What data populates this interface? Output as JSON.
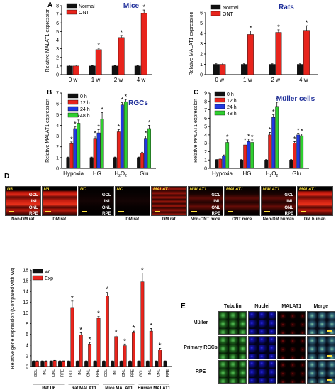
{
  "panel_letters": {
    "A": "A",
    "B": "B",
    "C": "C",
    "D": "D",
    "E": "E"
  },
  "colors": {
    "control": "#111111",
    "treatment": "#e8241c",
    "h0": "#111111",
    "h12": "#e8241c",
    "h24": "#2038e0",
    "h48": "#2fd02f",
    "title": "#1f2f9a"
  },
  "chart_data": [
    {
      "id": "A-mice",
      "type": "bar",
      "title": "Mice",
      "ylabel": "Relative MALAT1 expression",
      "ylim": [
        0,
        8
      ],
      "yticks": [
        0,
        1,
        2,
        3,
        4,
        5,
        6,
        7,
        8
      ],
      "categories": [
        "0 w",
        "1 w",
        "2 w",
        "4 w"
      ],
      "series": [
        {
          "name": "Normal",
          "values": [
            1,
            1,
            1,
            1
          ],
          "err": [
            0.1,
            0.05,
            0.05,
            0.05
          ]
        },
        {
          "name": "ONT",
          "values": [
            1,
            2.9,
            4.3,
            7.1
          ],
          "err": [
            0.1,
            0.15,
            0.25,
            0.4
          ]
        }
      ],
      "stars": [
        [
          1,
          1
        ],
        [
          1,
          2
        ],
        [
          1,
          3
        ]
      ]
    },
    {
      "id": "A-rats",
      "type": "bar",
      "title": "Rats",
      "ylabel": "Relative MALAT1 expression",
      "ylim": [
        0,
        6
      ],
      "yticks": [
        0,
        1,
        2,
        3,
        4,
        5,
        6
      ],
      "categories": [
        "0 w",
        "1 w",
        "2 w",
        "4 w"
      ],
      "series": [
        {
          "name": "Normal",
          "values": [
            1,
            1,
            1,
            1
          ],
          "err": [
            0.1,
            0.05,
            0.05,
            0.05
          ]
        },
        {
          "name": "ONT",
          "values": [
            1,
            3.9,
            4.1,
            4.3
          ],
          "err": [
            0.15,
            0.35,
            0.25,
            0.45
          ]
        }
      ],
      "stars": [
        [
          1,
          1
        ],
        [
          1,
          2
        ],
        [
          1,
          3
        ]
      ]
    },
    {
      "id": "B-rgcs",
      "type": "bar",
      "title": "RGCs",
      "ylabel": "Relative MALAT1 expression",
      "ylim": [
        0,
        7
      ],
      "yticks": [
        0,
        1,
        2,
        3,
        4,
        5,
        6,
        7
      ],
      "categories": [
        "Hypoxia",
        "HG",
        "H2O2",
        "Glu"
      ],
      "series": [
        {
          "name": "0 h",
          "values": [
            1,
            1,
            1,
            1
          ],
          "err": [
            0.05,
            0.05,
            0.05,
            0.05
          ]
        },
        {
          "name": "12 h",
          "values": [
            2.3,
            2.8,
            3.4,
            1.4
          ],
          "err": [
            0.15,
            0.2,
            0.2,
            0.1
          ]
        },
        {
          "name": "24 h",
          "values": [
            3.7,
            3.3,
            5.9,
            2.8
          ],
          "err": [
            0.15,
            0.3,
            0.2,
            0.2
          ]
        },
        {
          "name": "48 h",
          "values": [
            4.2,
            4.6,
            6.2,
            3.7
          ],
          "err": [
            0.3,
            0.6,
            0.2,
            0.3
          ]
        }
      ],
      "stars": [
        [
          1,
          0
        ],
        [
          2,
          0
        ],
        [
          3,
          0
        ],
        [
          1,
          1
        ],
        [
          2,
          1
        ],
        [
          3,
          1
        ],
        [
          1,
          2
        ],
        [
          2,
          2
        ],
        [
          3,
          2
        ],
        [
          2,
          3
        ],
        [
          3,
          3
        ]
      ]
    },
    {
      "id": "C-muller",
      "type": "bar",
      "title": "Müller cells",
      "ylabel": "Relative MALAT1 expression",
      "ylim": [
        0,
        9
      ],
      "yticks": [
        0,
        1,
        2,
        3,
        4,
        5,
        6,
        7,
        8,
        9
      ],
      "categories": [
        "Hypoxia",
        "HG",
        "H2O2",
        "Glu"
      ],
      "series": [
        {
          "name": "0 h",
          "values": [
            1,
            1,
            1,
            1
          ],
          "err": [
            0.05,
            0.05,
            0.05,
            0.05
          ]
        },
        {
          "name": "12 h",
          "values": [
            1.1,
            2.8,
            4,
            3
          ],
          "err": [
            0.1,
            0.2,
            0.3,
            0.2
          ]
        },
        {
          "name": "24 h",
          "values": [
            1.5,
            3.2,
            6.1,
            4
          ],
          "err": [
            0.1,
            0.3,
            0.3,
            0.2
          ]
        },
        {
          "name": "48 h",
          "values": [
            3.1,
            3.1,
            7.4,
            3.9
          ],
          "err": [
            0.3,
            0.3,
            0.5,
            0.2
          ]
        }
      ],
      "stars": [
        [
          3,
          0
        ],
        [
          1,
          1
        ],
        [
          2,
          1
        ],
        [
          3,
          1
        ],
        [
          1,
          2
        ],
        [
          2,
          2
        ],
        [
          3,
          2
        ],
        [
          1,
          3
        ],
        [
          2,
          3
        ],
        [
          3,
          3
        ]
      ]
    },
    {
      "id": "D-bars",
      "type": "bar",
      "title": "",
      "ylabel": "Relative gene expression (Compared with Wt)",
      "ylim": [
        0,
        18
      ],
      "yticks": [
        0,
        2,
        4,
        6,
        8,
        10,
        12,
        14,
        16,
        18
      ],
      "categories": [
        "GCL",
        "INL",
        "ONL",
        "RPE",
        "GCL",
        "INL",
        "ONL",
        "RPE",
        "GCL",
        "INL",
        "ONL",
        "RPE",
        "GCL",
        "INL",
        "ONL",
        "RPE"
      ],
      "groups": [
        "Rat U6",
        "Rat MALAT1",
        "Mice MALAT1",
        "Human MALAT1"
      ],
      "series": [
        {
          "name": "Wt",
          "values": [
            1,
            1,
            1,
            1,
            1,
            1,
            1,
            1,
            1,
            1,
            1,
            1,
            1,
            1,
            1,
            1
          ],
          "err": [
            0.05,
            0.05,
            0.05,
            0.05,
            0.05,
            0.05,
            0.05,
            0.05,
            0.05,
            0.05,
            0.05,
            0.05,
            0.05,
            0.05,
            0.05,
            0.05
          ]
        },
        {
          "name": "Exp",
          "values": [
            1,
            1,
            1.1,
            1,
            11,
            5.9,
            4.2,
            9,
            13.2,
            5.6,
            3.9,
            6.3,
            15.8,
            6.6,
            3.1,
            0
          ],
          "err": [
            0.05,
            0.05,
            0.05,
            0.05,
            1.2,
            0.4,
            0.3,
            0.3,
            0.6,
            0.3,
            0.3,
            0.3,
            1.6,
            0.5,
            0.3,
            0
          ]
        }
      ],
      "stars": [
        [
          1,
          4
        ],
        [
          1,
          5
        ],
        [
          1,
          6
        ],
        [
          1,
          7
        ],
        [
          1,
          8
        ],
        [
          1,
          9
        ],
        [
          1,
          10
        ],
        [
          1,
          11
        ],
        [
          1,
          12
        ],
        [
          1,
          13
        ],
        [
          1,
          14
        ]
      ]
    }
  ],
  "tick_labels_html": {
    "H2O2": "H2O2"
  },
  "micrographs": {
    "row": [
      {
        "label": "U6",
        "caption": "Non-DM rat",
        "style": "red",
        "layers": [
          "GCL",
          "INL",
          "ONL",
          "RPE"
        ]
      },
      {
        "label": "U6",
        "caption": "DM rat",
        "style": "red",
        "layers": []
      },
      {
        "label": "NC",
        "caption": "",
        "style": "dark",
        "layers": [
          "GCL",
          "INL",
          "ONL",
          "RPE"
        ]
      },
      {
        "label": "NC",
        "caption": "DM rat",
        "style": "dark",
        "layers": []
      },
      {
        "label": "MALAT1",
        "caption": "DM rat",
        "style": "banded",
        "layers": []
      },
      {
        "label": "MALAT1",
        "caption": "Non-ONT mice",
        "style": "dim",
        "layers": [
          "GCL",
          "INL",
          "ONL",
          "RPE"
        ]
      },
      {
        "label": "MALAT1",
        "caption": "ONT mice",
        "style": "dim",
        "layers": []
      },
      {
        "label": "MALAT1",
        "caption": "Non-DM human",
        "style": "dim",
        "layers": [
          "GCL",
          "INL",
          "ONL",
          "RPE"
        ]
      },
      {
        "label": "MALAT1",
        "caption": "DM human",
        "style": "red",
        "layers": []
      }
    ],
    "grid_e": {
      "columns": [
        "Tubulin",
        "Nuclei",
        "MALAT1",
        "Merge"
      ],
      "rows": [
        "Müller",
        "Primary RGCs",
        "RPE"
      ]
    }
  }
}
